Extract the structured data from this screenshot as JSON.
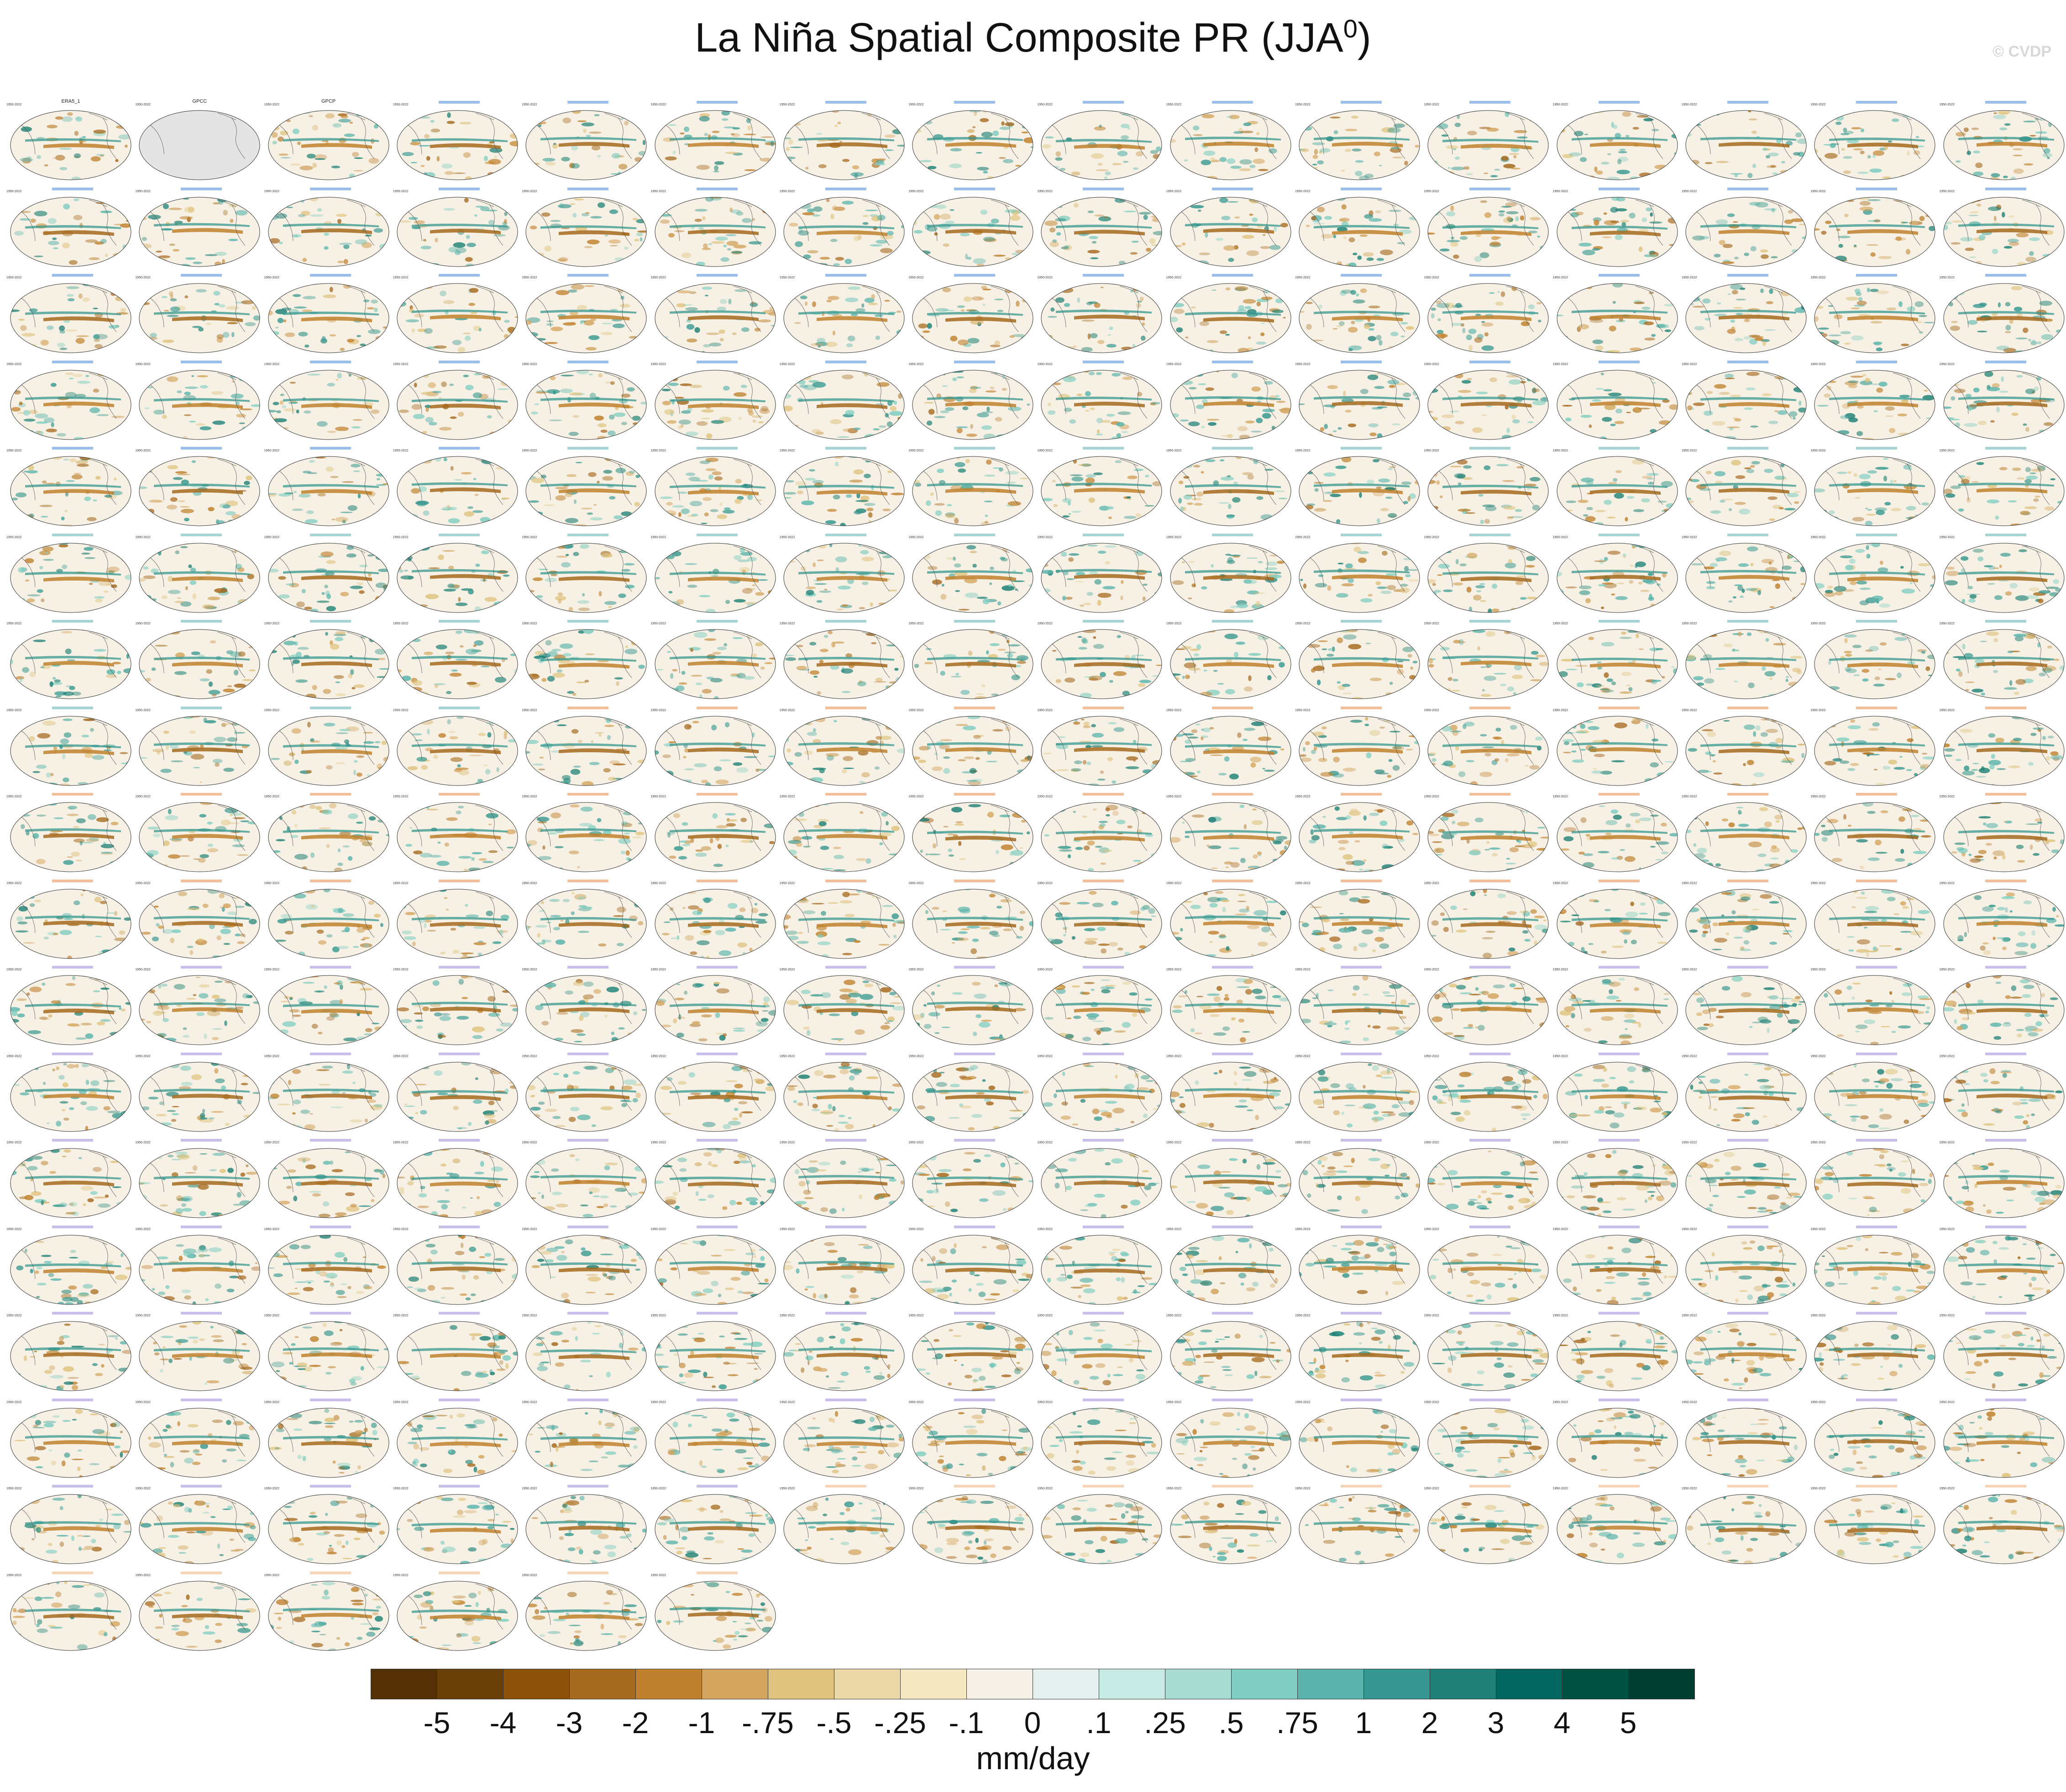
{
  "title": {
    "text": "La Niña Spatial Composite PR (JJA",
    "superscript": "0",
    "close": ")"
  },
  "watermark": "© CVDP",
  "panel_grid": {
    "columns": 16,
    "rows": 18,
    "legible_titles": [
      "ERA5_1",
      "GPCC",
      "GPCP"
    ],
    "blank_panels": [
      "GPCC"
    ],
    "years_text": "1950-2022",
    "model_groups": [
      {
        "name": "ACCESS-ESM1-5",
        "title_color": "#1f6fd0"
      },
      {
        "name": "CanESM5",
        "title_color": "#3aa0a0"
      },
      {
        "name": "CESM1",
        "title_color": "#e07020"
      },
      {
        "name": "CESM2",
        "title_color": "#8a6fd0"
      },
      {
        "name": "CESM2-MLE",
        "title_color": "#f0a060"
      }
    ],
    "total_panels": 278
  },
  "colorbar": {
    "colors": [
      "#543005",
      "#6b3f08",
      "#8c510a",
      "#a66a1f",
      "#bf812d",
      "#d4a55e",
      "#dfc27d",
      "#ecd9a8",
      "#f6e8c3",
      "#f5f1e8",
      "#e6f0ee",
      "#c7eae5",
      "#a7dcd2",
      "#80cdc1",
      "#5ab4ac",
      "#35978f",
      "#1f8176",
      "#01665e",
      "#00513f",
      "#003c30"
    ],
    "labels": [
      "-5",
      "-4",
      "-3",
      "-2",
      "-1",
      "-.75",
      "-.5",
      "-.25",
      "-.1",
      "0",
      ".1",
      ".25",
      ".5",
      ".75",
      "1",
      "2",
      "3",
      "4",
      "5"
    ],
    "units": "mm/day"
  }
}
